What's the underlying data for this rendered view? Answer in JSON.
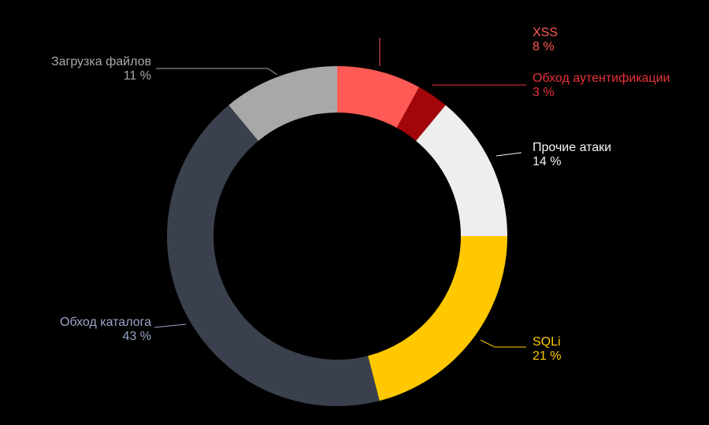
{
  "chart_data": {
    "type": "pie",
    "variant": "donut",
    "slices": [
      {
        "label": "XSS",
        "value": 8,
        "value_text": "8 %",
        "color": "#FF5A55",
        "text_color": "#FF5A55"
      },
      {
        "label": "Обход аутентификации",
        "value": 3,
        "value_text": "3 %",
        "color": "#A3060A",
        "text_color": "#E8333C"
      },
      {
        "label": "Прочие атаки",
        "value": 14,
        "value_text": "14 %",
        "color": "#EEEEEE",
        "text_color": "#F4F4F4"
      },
      {
        "label": "SQLi",
        "value": 21,
        "value_text": "21 %",
        "color": "#FFC800",
        "text_color": "#FFC800"
      },
      {
        "label": "Обход каталога",
        "value": 43,
        "value_text": "43 %",
        "color": "#3A404D",
        "text_color": "#9AA6C8"
      },
      {
        "label": "Загрузка файлов",
        "value": 11,
        "value_text": "11 %",
        "color": "#A8A8A8",
        "text_color": "#A8A8A8"
      }
    ],
    "start_angle_deg": 0,
    "direction": "clockwise",
    "background": "#000000",
    "legend": "none"
  }
}
